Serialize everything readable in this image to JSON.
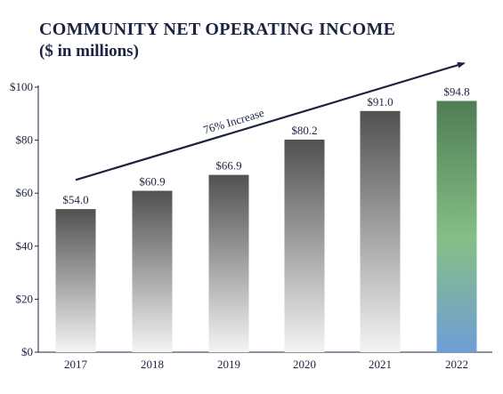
{
  "header": {
    "title": "COMMUNITY NET OPERATING INCOME",
    "subtitle": "($ in millions)"
  },
  "colors": {
    "gray_bar_top": "#505150",
    "gray_bar_bottom": "#f4f4f4",
    "highlight_top": "#4f7d55",
    "highlight_mid": "#86bf86",
    "highlight_bottom": "#6f9ed6",
    "text": "#1c2340",
    "axis": "#1c2340"
  },
  "chart_data": {
    "type": "bar",
    "title": "COMMUNITY NET OPERATING INCOME",
    "subtitle": "($ in millions)",
    "categories": [
      "2017",
      "2018",
      "2019",
      "2020",
      "2021",
      "2022"
    ],
    "values": [
      54.0,
      60.9,
      66.9,
      80.2,
      91.0,
      94.8
    ],
    "data_labels": [
      "$54.0",
      "$60.9",
      "$66.9",
      "$80.2",
      "$91.0",
      "$94.8"
    ],
    "highlight_index": 5,
    "ylim": [
      0,
      100
    ],
    "yticks": [
      0,
      20,
      40,
      60,
      80,
      100
    ],
    "ytick_labels": [
      "$0",
      "$20",
      "$40",
      "$60",
      "$80",
      "$100"
    ],
    "grid": false,
    "annotation": {
      "text": "76% Increase",
      "arrow_from": {
        "category": "2017",
        "value": 65
      },
      "arrow_to": {
        "category": "2022",
        "value": 109
      }
    }
  }
}
